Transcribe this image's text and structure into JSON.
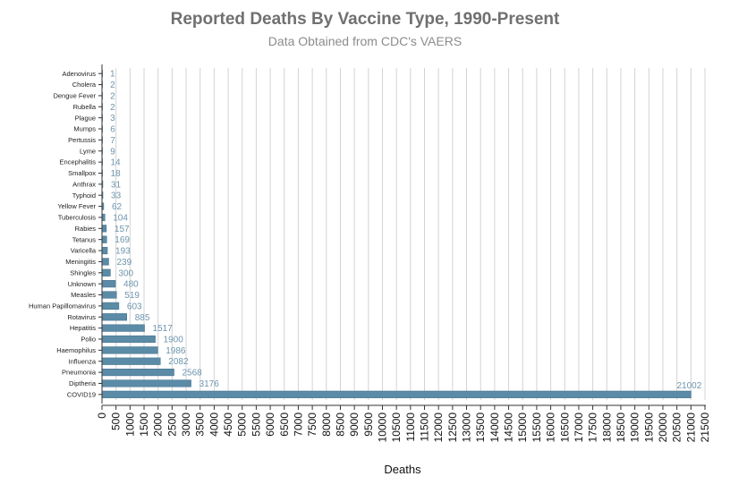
{
  "chart_data": {
    "type": "bar",
    "orientation": "horizontal",
    "title": "Reported Deaths By Vaccine Type, 1990-Present",
    "subtitle": "Data Obtained from CDC's VAERS",
    "xlabel": "Deaths",
    "ylabel": "",
    "xlim": [
      0,
      21500
    ],
    "tick_step": 500,
    "grid": "vertical",
    "bar_color": "#5b8ba6",
    "categories": [
      "Adenovirus",
      "Cholera",
      "Dengue Fever",
      "Rubella",
      "Plague",
      "Mumps",
      "Pertussis",
      "Lyme",
      "Encephalitis",
      "Smallpox",
      "Anthrax",
      "Typhoid",
      "Yellow Fever",
      "Tuberculosis",
      "Rabies",
      "Tetanus",
      "Varicella",
      "Meningitis",
      "Shingles",
      "Unknown",
      "Measles",
      "Human Papillomavirus",
      "Rotavirus",
      "Hepatitis",
      "Polio",
      "Haemophilus",
      "Influenza",
      "Pneumonia",
      "Diptheria",
      "COVID19"
    ],
    "values": [
      1,
      2,
      2,
      2,
      3,
      6,
      7,
      9,
      14,
      18,
      31,
      33,
      62,
      104,
      157,
      169,
      193,
      239,
      300,
      480,
      519,
      603,
      885,
      1517,
      1900,
      1986,
      2082,
      2568,
      3176,
      21002
    ]
  }
}
